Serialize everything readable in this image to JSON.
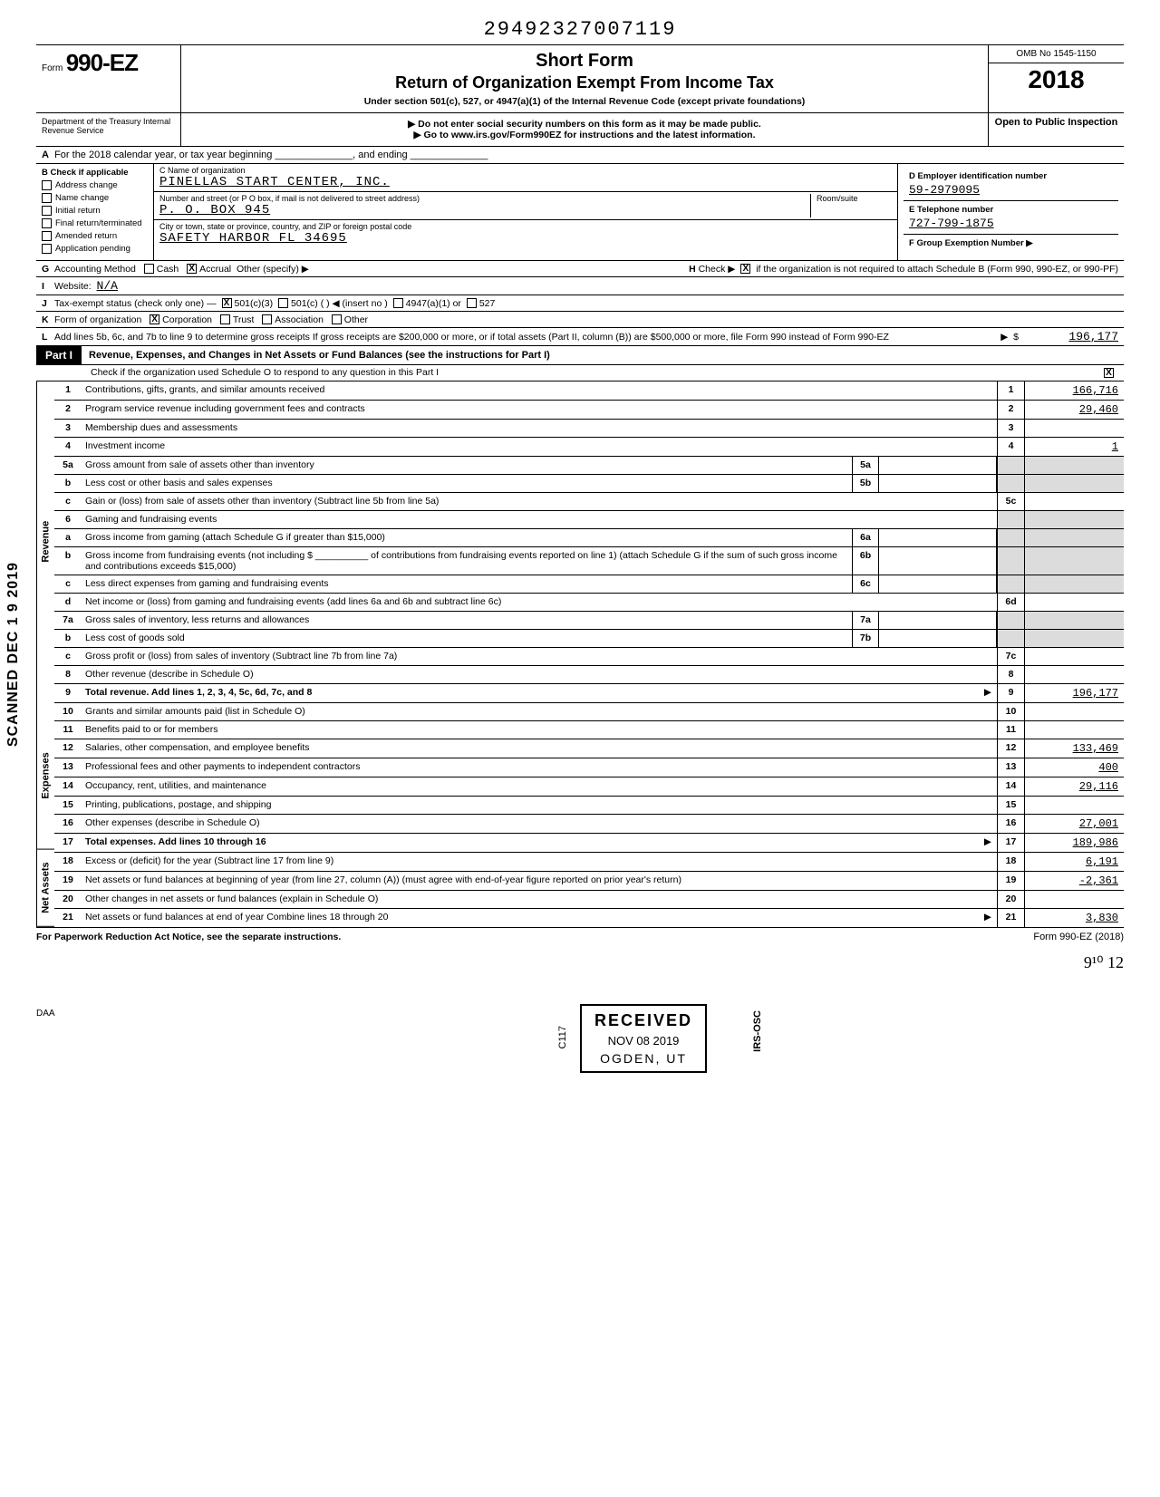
{
  "top_id": "29492327007119",
  "form": {
    "prefix": "Form",
    "number": "990-EZ"
  },
  "title": "Short Form",
  "subtitle": "Return of Organization Exempt From Income Tax",
  "under": "Under section 501(c), 527, or 4947(a)(1) of the Internal Revenue Code (except private foundations)",
  "notice1": "Do not enter social security numbers on this form as it may be made public.",
  "notice2": "Go to www.irs.gov/Form990EZ for instructions and the latest information.",
  "omb": "OMB No 1545-1150",
  "year": "2018",
  "open": "Open to Public Inspection",
  "dept": "Department of the Treasury Internal Revenue Service",
  "rowA": "For the 2018 calendar year, or tax year beginning ______________, and ending ______________",
  "colB_header": "Check if applicable",
  "colB_items": [
    "Address change",
    "Name change",
    "Initial return",
    "Final return/terminated",
    "Amended return",
    "Application pending"
  ],
  "colC": {
    "c_label": "C  Name of organization",
    "name": "PINELLAS START CENTER, INC.",
    "street_label": "Number and street (or P O  box, if mail is not delivered to street address)",
    "street": "P. O. BOX 945",
    "room_label": "Room/suite",
    "city_label": "City or town, state or province, country, and ZIP or foreign postal code",
    "city": "SAFETY HARBOR          FL 34695"
  },
  "colD": {
    "d_label": "D  Employer identification number",
    "ein": "59-2979095",
    "e_label": "E  Telephone number",
    "phone": "727-799-1875",
    "f_label": "F  Group Exemption Number ▶"
  },
  "rowG": {
    "label": "Accounting Method",
    "opts": [
      "Cash",
      "Accrual",
      "Other (specify) ▶"
    ],
    "checked": "X"
  },
  "rowH": {
    "text": "Check ▶",
    "chk": "X",
    "rest": "if the organization is not required to attach Schedule B (Form 990, 990-EZ, or 990-PF)"
  },
  "rowI": {
    "label": "Website:",
    "val": "N/A"
  },
  "rowJ": {
    "label": "Tax-exempt status (check only one) —",
    "opts": [
      "501(c)(3)",
      "501(c) (    ) ◀ (insert no )",
      "4947(a)(1) or",
      "527"
    ],
    "checked": "X"
  },
  "rowK": {
    "label": "Form of organization",
    "opts": [
      "Corporation",
      "Trust",
      "Association",
      "Other"
    ],
    "checked": "X"
  },
  "rowL": {
    "text": "Add lines 5b, 6c, and 7b to line 9 to determine gross receipts  If gross receipts are $200,000 or more, or if total assets (Part II, column (B)) are $500,000 or more, file Form 990 instead of Form 990-EZ",
    "val": "196,177"
  },
  "part1": {
    "badge": "Part I",
    "title": "Revenue, Expenses, and Changes in Net Assets or Fund Balances (see the instructions for Part I)",
    "sub": "Check if the organization used Schedule O to respond to any question in this Part I",
    "sub_chk": "X"
  },
  "sections": {
    "revenue_label": "Revenue",
    "expenses_label": "Expenses",
    "netassets_label": "Net Assets",
    "scanned": "SCANNED  DEC 1 9 2019"
  },
  "lines": [
    {
      "n": "1",
      "desc": "Contributions, gifts, grants, and similar amounts received",
      "box": "1",
      "val": "166,716"
    },
    {
      "n": "2",
      "desc": "Program service revenue including government fees and contracts",
      "box": "2",
      "val": "29,460"
    },
    {
      "n": "3",
      "desc": "Membership dues and assessments",
      "box": "3",
      "val": ""
    },
    {
      "n": "4",
      "desc": "Investment income",
      "box": "4",
      "val": "1"
    },
    {
      "n": "5a",
      "desc": "Gross amount from sale of assets other than inventory",
      "mid": "5a"
    },
    {
      "n": "b",
      "desc": "Less  cost or other basis and sales expenses",
      "mid": "5b"
    },
    {
      "n": "c",
      "desc": "Gain or (loss) from sale of assets other than inventory (Subtract line 5b from line 5a)",
      "box": "5c",
      "val": ""
    },
    {
      "n": "6",
      "desc": "Gaming and fundraising events"
    },
    {
      "n": "a",
      "desc": "Gross income from gaming (attach Schedule G if greater than $15,000)",
      "mid": "6a"
    },
    {
      "n": "b",
      "desc": "Gross income from fundraising events (not including $ __________ of contributions from fundraising events reported on line 1) (attach Schedule G if the sum of such gross income and contributions exceeds $15,000)",
      "mid": "6b"
    },
    {
      "n": "c",
      "desc": "Less  direct expenses from gaming and fundraising events",
      "mid": "6c"
    },
    {
      "n": "d",
      "desc": "Net income or (loss) from gaming and fundraising events (add lines 6a and 6b and subtract line 6c)",
      "box": "6d",
      "val": ""
    },
    {
      "n": "7a",
      "desc": "Gross sales of inventory, less returns and allowances",
      "mid": "7a"
    },
    {
      "n": "b",
      "desc": "Less  cost of goods sold",
      "mid": "7b"
    },
    {
      "n": "c",
      "desc": "Gross profit or (loss) from sales of inventory (Subtract line 7b from line 7a)",
      "box": "7c",
      "val": ""
    },
    {
      "n": "8",
      "desc": "Other revenue (describe in Schedule O)",
      "box": "8",
      "val": ""
    },
    {
      "n": "9",
      "desc": "Total revenue. Add lines 1, 2, 3, 4, 5c, 6d, 7c, and 8",
      "box": "9",
      "val": "196,177",
      "bold": true,
      "arrow": true
    },
    {
      "n": "10",
      "desc": "Grants and similar amounts paid (list in Schedule O)",
      "box": "10",
      "val": ""
    },
    {
      "n": "11",
      "desc": "Benefits paid to or for members",
      "box": "11",
      "val": ""
    },
    {
      "n": "12",
      "desc": "Salaries, other compensation, and employee benefits",
      "box": "12",
      "val": "133,469"
    },
    {
      "n": "13",
      "desc": "Professional fees and other payments to independent contractors",
      "box": "13",
      "val": "400"
    },
    {
      "n": "14",
      "desc": "Occupancy, rent, utilities, and maintenance",
      "box": "14",
      "val": "29,116"
    },
    {
      "n": "15",
      "desc": "Printing, publications, postage, and shipping",
      "box": "15",
      "val": ""
    },
    {
      "n": "16",
      "desc": "Other expenses (describe in Schedule O)",
      "box": "16",
      "val": "27,001"
    },
    {
      "n": "17",
      "desc": "Total expenses. Add lines 10 through 16",
      "box": "17",
      "val": "189,986",
      "bold": true,
      "arrow": true
    },
    {
      "n": "18",
      "desc": "Excess or (deficit) for the year (Subtract line 17 from line 9)",
      "box": "18",
      "val": "6,191"
    },
    {
      "n": "19",
      "desc": "Net assets or fund balances at beginning of year (from line 27, column (A)) (must agree with end-of-year figure reported on prior year's return)",
      "box": "19",
      "val": "-2,361"
    },
    {
      "n": "20",
      "desc": "Other changes in net assets or fund balances (explain in Schedule O)",
      "box": "20",
      "val": ""
    },
    {
      "n": "21",
      "desc": "Net assets or fund balances at end of year  Combine lines 18 through 20",
      "box": "21",
      "val": "3,830",
      "arrow": true
    }
  ],
  "stamp": {
    "r1": "RECEIVED",
    "r2": "NOV 08 2019",
    "r3": "OGDEN, UT"
  },
  "irs_osc": "IRS-OSC",
  "c117": "C117",
  "footer_left": "For Paperwork Reduction Act Notice, see the separate instructions.",
  "footer_right": "Form 990-EZ (2018)",
  "daa": "DAA",
  "page_annot": "9¹⁰   12"
}
